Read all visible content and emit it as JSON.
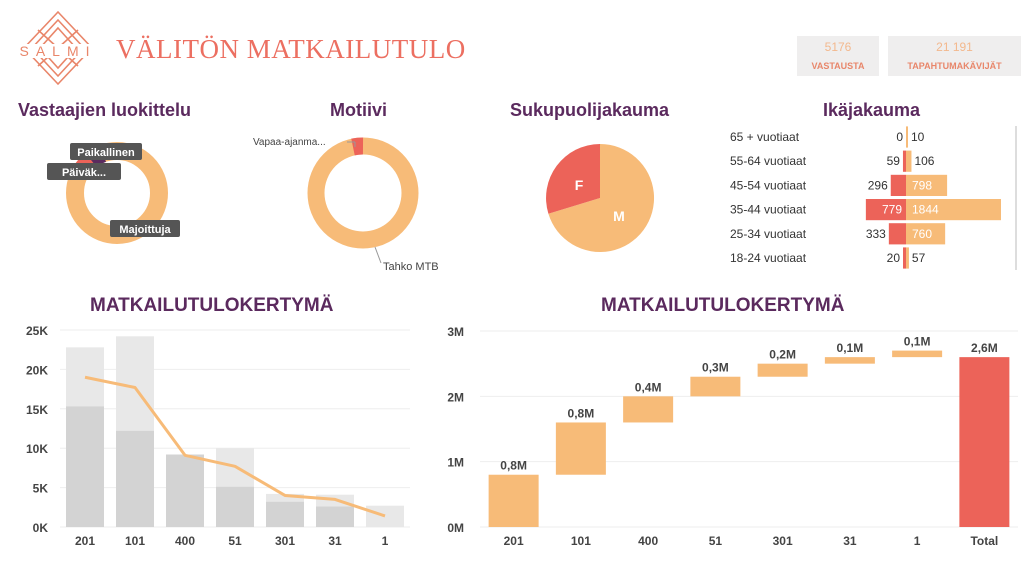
{
  "header": {
    "logo_text": "SALMI",
    "title": "VÄLITÖN MATKAILUTULO",
    "kpis": [
      {
        "value": "5176",
        "label": "VASTAUSTA"
      },
      {
        "value": "21 191",
        "label": "TAPAHTUMAKÄVIJÄT"
      }
    ]
  },
  "colors": {
    "accent_red": "#ec6359",
    "accent_orange": "#f7bb78",
    "title_purple": "#5b2a5e",
    "grey_dark": "#d3d3d3",
    "grey_light": "#e8e8e8"
  },
  "respondents": {
    "title": "Vastaajien luokittelu",
    "labels": [
      "Paikallinen",
      "Päiväk...",
      "Majoittuja"
    ]
  },
  "motive": {
    "title": "Motiivi",
    "labels": [
      "Vapaa-ajanma...",
      "Tahko MTB"
    ]
  },
  "gender": {
    "title": "Sukupuolijakauma",
    "labels": [
      "F",
      "M"
    ]
  },
  "age": {
    "title": "Ikäjakauma",
    "rows": [
      {
        "label": "65 + vuotiaat",
        "left": "0",
        "right": "10"
      },
      {
        "label": "55-64 vuotiaat",
        "left": "59",
        "right": "106"
      },
      {
        "label": "45-54 vuotiaat",
        "left": "296",
        "right": "798"
      },
      {
        "label": "35-44 vuotiaat",
        "left": "779",
        "right": "1844"
      },
      {
        "label": "25-34 vuotiaat",
        "left": "333",
        "right": "760"
      },
      {
        "label": "18-24 vuotiaat",
        "left": "20",
        "right": "57"
      }
    ]
  },
  "chart_data": [
    {
      "type": "bar",
      "title": "MATKAILUTULOKERTYMÄ",
      "categories": [
        "201",
        "101",
        "400",
        "51",
        "301",
        "31",
        "1"
      ],
      "y_ticks": [
        "25K",
        "20K",
        "15K",
        "10K",
        "5K",
        "0K"
      ],
      "ylim": [
        0,
        25000
      ],
      "series": [
        {
          "values": [
            15300,
            12200,
            9200,
            5100,
            3200,
            2600,
            0
          ]
        },
        {
          "values": [
            22800,
            24200,
            9200,
            10000,
            4200,
            4100,
            2700
          ]
        },
        {
          "values": [
            19000,
            17700,
            9100,
            7700,
            4000,
            3500,
            1400
          ]
        }
      ]
    },
    {
      "type": "bar",
      "title": "MATKAILUTULOKERTYMÄ",
      "categories": [
        "201",
        "101",
        "400",
        "51",
        "301",
        "31",
        "1",
        "Total"
      ],
      "y_ticks": [
        "3M",
        "2M",
        "1M",
        "0M"
      ],
      "ylim": [
        0,
        3
      ],
      "values": [
        0.8,
        0.8,
        0.4,
        0.3,
        0.2,
        0.1,
        0.1,
        2.6
      ],
      "data_labels": [
        "0,8M",
        "0,8M",
        "0,4M",
        "0,3M",
        "0,2M",
        "0,1M",
        "0,1M",
        "2,6M"
      ]
    }
  ]
}
